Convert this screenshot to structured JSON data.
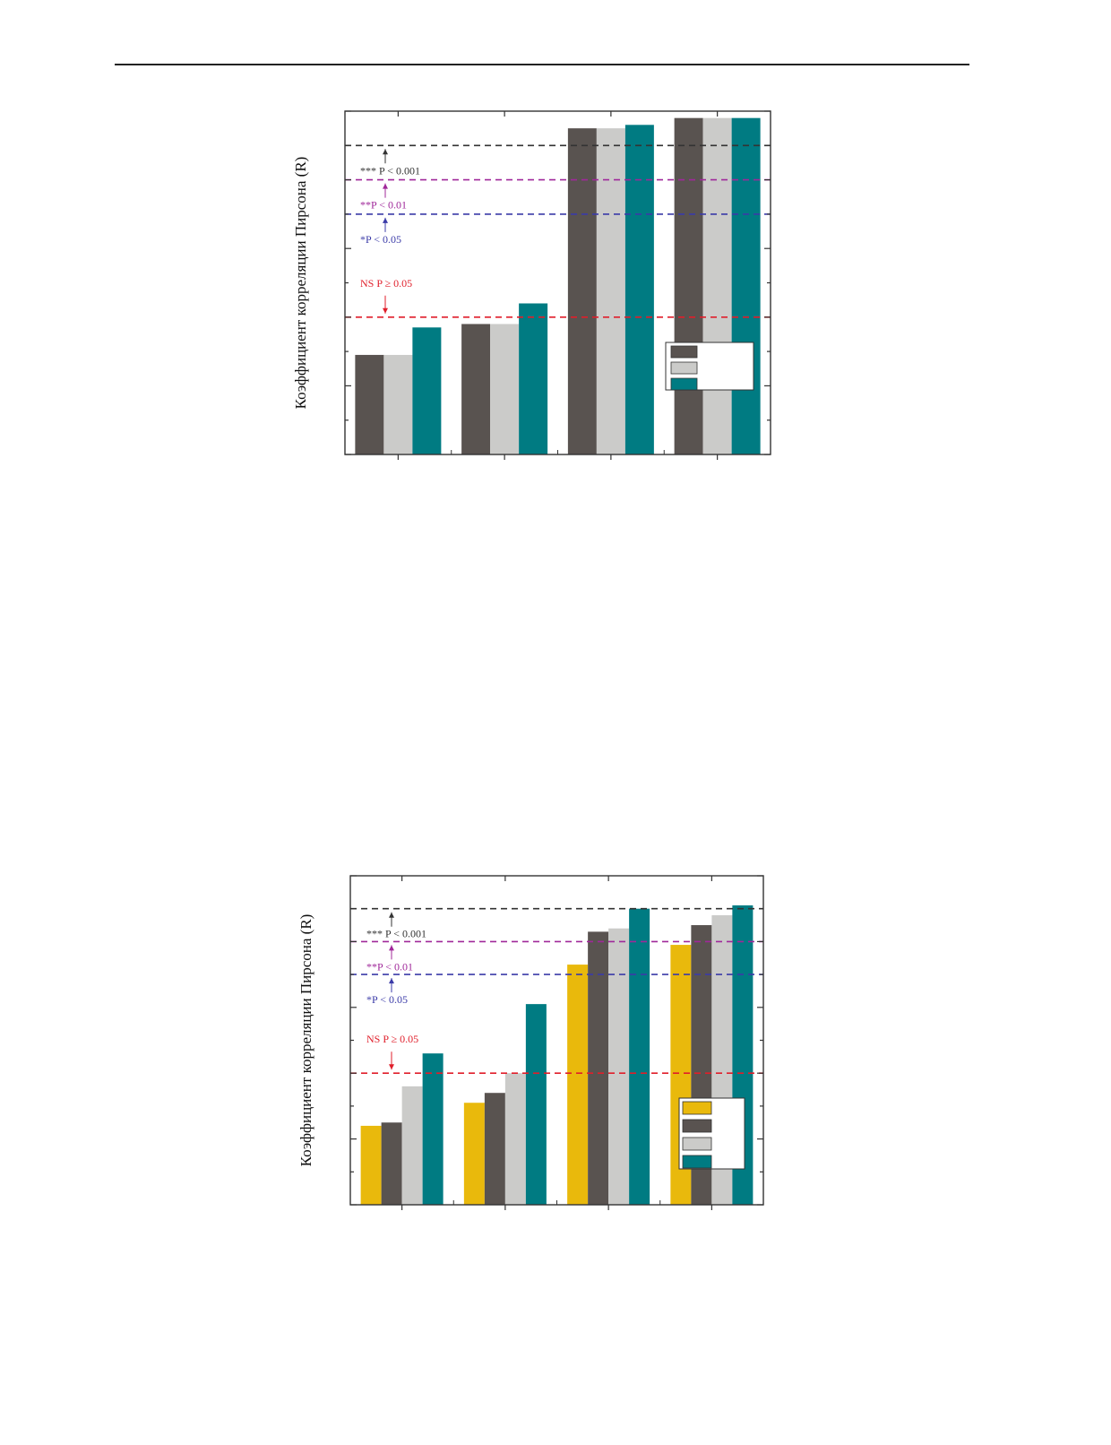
{
  "chart_data": [
    {
      "type": "bar",
      "ylabel": "Коэффициент корреляции Пирсона (R)",
      "xlabel": "",
      "title": "",
      "ylim": [
        0,
        1
      ],
      "categories": [
        "",
        "",
        "",
        ""
      ],
      "series": [
        {
          "color": "#595350",
          "values": [
            0.29,
            0.38,
            0.95,
            0.98
          ]
        },
        {
          "color": "#cbcbc9",
          "values": [
            0.29,
            0.38,
            0.95,
            0.98
          ]
        },
        {
          "color": "#007b82",
          "values": [
            0.37,
            0.44,
            0.96,
            0.98
          ]
        }
      ],
      "thresholds": [
        {
          "value": 0.9,
          "color": "#333333",
          "label": "*** P < 0.001",
          "direction": "up"
        },
        {
          "value": 0.8,
          "color": "#a0289a",
          "label": "**P < 0.01",
          "direction": "up"
        },
        {
          "value": 0.7,
          "color": "#3b3ba8",
          "label": "*P < 0.05",
          "direction": "up"
        },
        {
          "value": 0.4,
          "color": "#e01e2a",
          "label": "NS  P ≥ 0.05",
          "direction": "down"
        }
      ],
      "legend": {
        "position": "bottom-right",
        "entries": [
          "",
          "",
          ""
        ]
      }
    },
    {
      "type": "bar",
      "ylabel": "Коэффициент корреляции Пирсона (R)",
      "xlabel": "",
      "title": "",
      "ylim": [
        0,
        1
      ],
      "categories": [
        "",
        "",
        "",
        ""
      ],
      "series": [
        {
          "color": "#e9b90c",
          "values": [
            0.24,
            0.31,
            0.73,
            0.79
          ]
        },
        {
          "color": "#595350",
          "values": [
            0.25,
            0.34,
            0.83,
            0.85
          ]
        },
        {
          "color": "#cbcbc9",
          "values": [
            0.36,
            0.4,
            0.84,
            0.88
          ]
        },
        {
          "color": "#007b82",
          "values": [
            0.46,
            0.61,
            0.9,
            0.91
          ]
        }
      ],
      "thresholds": [
        {
          "value": 0.9,
          "color": "#333333",
          "label": "*** P < 0.001",
          "direction": "up"
        },
        {
          "value": 0.8,
          "color": "#a0289a",
          "label": "**P < 0.01",
          "direction": "up"
        },
        {
          "value": 0.7,
          "color": "#3b3ba8",
          "label": "*P < 0.05",
          "direction": "up"
        },
        {
          "value": 0.4,
          "color": "#e01e2a",
          "label": "NS  P ≥ 0.05",
          "direction": "down"
        }
      ],
      "legend": {
        "position": "bottom-right",
        "entries": [
          "",
          "",
          "",
          ""
        ]
      }
    }
  ]
}
